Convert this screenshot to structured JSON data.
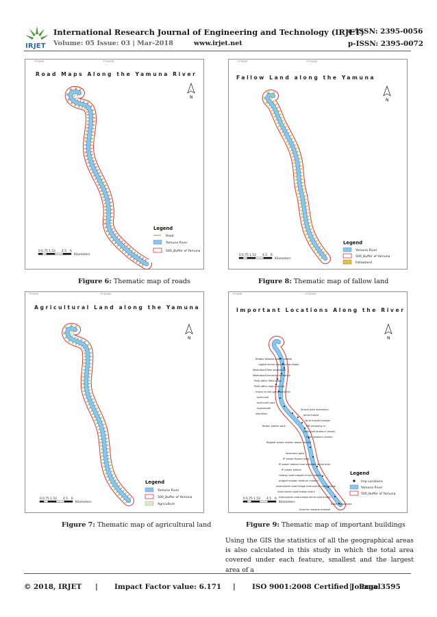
{
  "header": {
    "logo_text": "IRJET",
    "journal_title": "International Research Journal of Engineering and Technology (IRJET)",
    "e_issn": "e-ISSN: 2395-0056",
    "volume": "Volume: 05 Issue: 03 | Mar-2018",
    "url": "www.irjet.net",
    "p_issn": "p-ISSN: 2395-0072"
  },
  "figures": [
    {
      "map_title": "Road Maps Along the Yamuna River",
      "caption_label": "Figure 6:",
      "caption_text": " Thematic map of roads",
      "legend": {
        "title": "Legend",
        "items": [
          "Road",
          "Yamuna River",
          "500_Buffer of Yamuna"
        ]
      }
    },
    {
      "map_title": "Fallow Land along the Yamuna",
      "caption_label": "Figure 8:",
      "caption_text": " Thematic map of fallow land",
      "legend": {
        "title": "Legend",
        "items": [
          "Yamuna River",
          "500_Buffer of Yamuna",
          "Fallowland"
        ]
      }
    },
    {
      "map_title": "Agricultural Land along the Yamuna",
      "caption_label": "Figure 7:",
      "caption_text": " Thematic map of agricultural land",
      "legend": {
        "title": "Legend",
        "items": [
          "Yamuna River",
          "500_Buffer of Yamuna",
          "Agriculture"
        ]
      }
    },
    {
      "map_title": "Important Locations Along the River",
      "caption_label": "Figure 9:",
      "caption_text": " Thematic map of important buildings",
      "legend": {
        "title": "Legend",
        "items": [
          "Imp Locations",
          "Yamuna River",
          "500_Buffer of Yamuna"
        ]
      }
    }
  ],
  "map_common": {
    "north": "N",
    "scale_ticks": [
      "0",
      "0.75 1.5",
      "3",
      "4.5",
      "6"
    ],
    "scale_unit": "Kilometers",
    "colors": {
      "river": "#8ec3ea",
      "buffer": "#d8322f",
      "road": "#c8a060",
      "fallow": "#e0c04a",
      "agri": "#a9c77b"
    }
  },
  "body_text": "Using the GIS the statistics of all the geographical areas is also calculated in this study in which the total area covered under each feature, smallest and the largest area of a",
  "footer": {
    "copyright": "© 2018, IRJET",
    "sep1": "|",
    "impact": "Impact Factor value: 6.171",
    "sep2": "|",
    "iso": "ISO 9001:2008 Certified Journal",
    "sep3": "|",
    "page": "Page 3595"
  }
}
